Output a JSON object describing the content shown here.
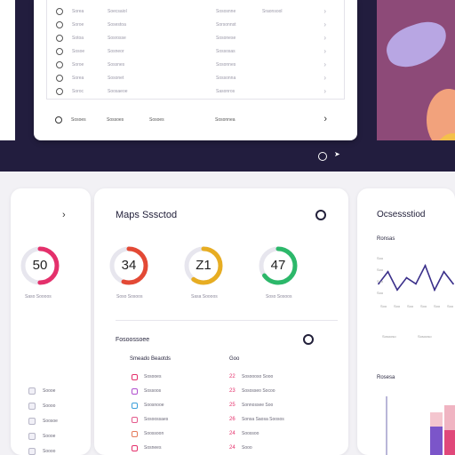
{
  "top_window": {
    "rows": [
      {
        "c1": "Sorea",
        "c2": "Soecsaiol",
        "c3": "Sososnne",
        "c4": "Sraonsool"
      },
      {
        "c1": "Soroe",
        "c2": "Sosestoa",
        "c3": "Sorsonnst"
      },
      {
        "c1": "Sotoa",
        "c2": "Sosrosse",
        "c3": "Sosonese"
      },
      {
        "c1": "Sosoe",
        "c2": "Sosneor",
        "c3": "Sossosas"
      },
      {
        "c1": "Soroe",
        "c2": "Sossnes",
        "c3": "Sosonnes"
      },
      {
        "c1": "Sorea",
        "c2": "Sosonet",
        "c3": "Sossonna"
      },
      {
        "c1": "Soroc",
        "c2": "Soosaeoe",
        "c3": "Sasonros"
      }
    ],
    "footer": {
      "c1": "Sosoes",
      "c2": "Sossoes",
      "c3": "Sosoes",
      "c4": "Sosonnea"
    }
  },
  "left_card": {
    "gauge": {
      "value": "50",
      "fraction": 0.5,
      "color": "#e4306b"
    },
    "gauge_label": "Saso Soooos",
    "rows": [
      "Soooe",
      "Soooo",
      "Soosoe",
      "Soooe",
      "Soooo"
    ]
  },
  "main_card": {
    "title": "Maps Sssctod",
    "gauges": [
      {
        "value": "34",
        "fraction": 0.55,
        "color": "#e34935",
        "label": "Soso Sosoos"
      },
      {
        "value": "Z1",
        "fraction": 0.6,
        "color": "#e7ad22",
        "label": "Sasa Soooos"
      },
      {
        "value": "47",
        "fraction": 0.65,
        "color": "#2cb86a",
        "label": "Soso Sosoos"
      }
    ],
    "section_title": "Fosoossoee",
    "list_header_left": "Smeado Beaotds",
    "list_header_right": "Goo",
    "list_left": [
      {
        "label": "Sosooes",
        "color": "#e4306b"
      },
      {
        "label": "Sossoos",
        "color": "#b04fcf"
      },
      {
        "label": "Soosnooe",
        "color": "#3b9ed9"
      },
      {
        "label": "Sosoossaes",
        "color": "#e45a8c"
      },
      {
        "label": "Soossoon",
        "color": "#e47a5a"
      },
      {
        "label": "Sosnees",
        "color": "#e4306b"
      }
    ],
    "list_right": [
      {
        "num": "22",
        "label": "Sosoooso Sooo"
      },
      {
        "num": "23",
        "label": "Sososseo Socoo"
      },
      {
        "num": "25",
        "label": "Sonnossee Soo"
      },
      {
        "num": "26",
        "label": "Sonsa Saosa Soosos"
      },
      {
        "num": "24",
        "label": "Soossoo"
      },
      {
        "num": "24",
        "label": "Sooo"
      }
    ]
  },
  "right_card": {
    "title": "Ocsessstiod",
    "subtitle": "Ronsas",
    "section2": "Rosesa",
    "y_ticks": [
      "Soo",
      "Soo",
      "Soo",
      "Soo"
    ],
    "x_ticks": [
      "Soo",
      "Soo",
      "Soo",
      "Soo",
      "Soo",
      "Soo"
    ],
    "bottom_ticks": [
      "Sosooso",
      "Sosooso"
    ]
  },
  "chart_data": {
    "type": "line",
    "x": [
      1,
      2,
      3,
      4,
      5,
      6,
      7,
      8,
      9
    ],
    "series": [
      {
        "values": [
          3,
          5,
          2,
          4,
          3,
          6,
          2,
          5,
          3
        ]
      }
    ],
    "ylim": [
      0,
      7
    ]
  }
}
